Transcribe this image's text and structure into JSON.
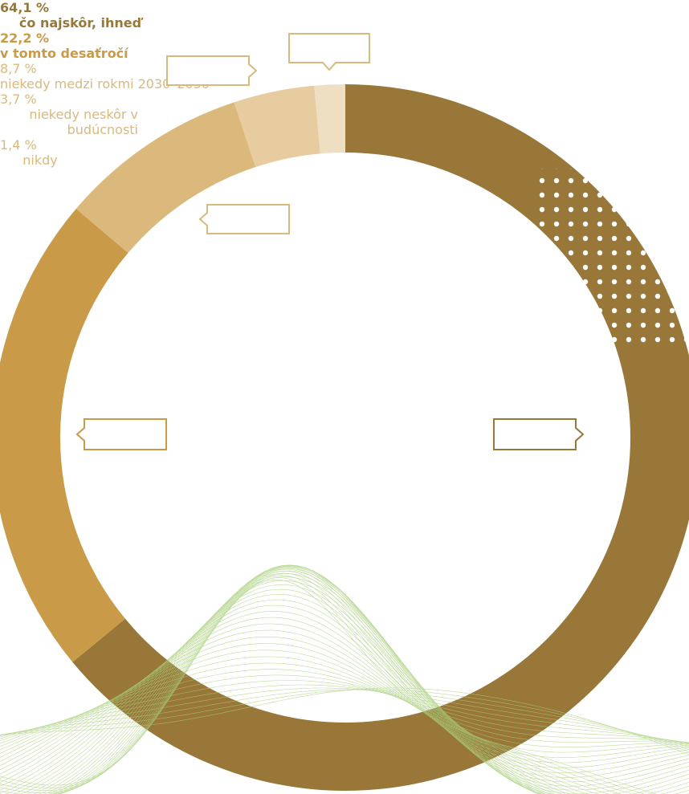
{
  "chart_data": {
    "type": "pie",
    "categories": [
      "čo najskôr, ihneď",
      "v tomto\ndesaťročí",
      "niekedy medzi rokmi\n2030–2050",
      "niekedy neskôr\nv budúcnosti",
      "nikdy"
    ],
    "values": [
      64.1,
      22.2,
      8.7,
      3.7,
      1.4
    ],
    "value_labels": [
      "64,1 %",
      "22,2 %",
      "8,7 %",
      "3,7 %",
      "1,4 %"
    ],
    "colors": [
      "#987739",
      "#c99a48",
      "#dbb87c",
      "#e6cc9e",
      "#eedfc3"
    ],
    "donut": true
  }
}
